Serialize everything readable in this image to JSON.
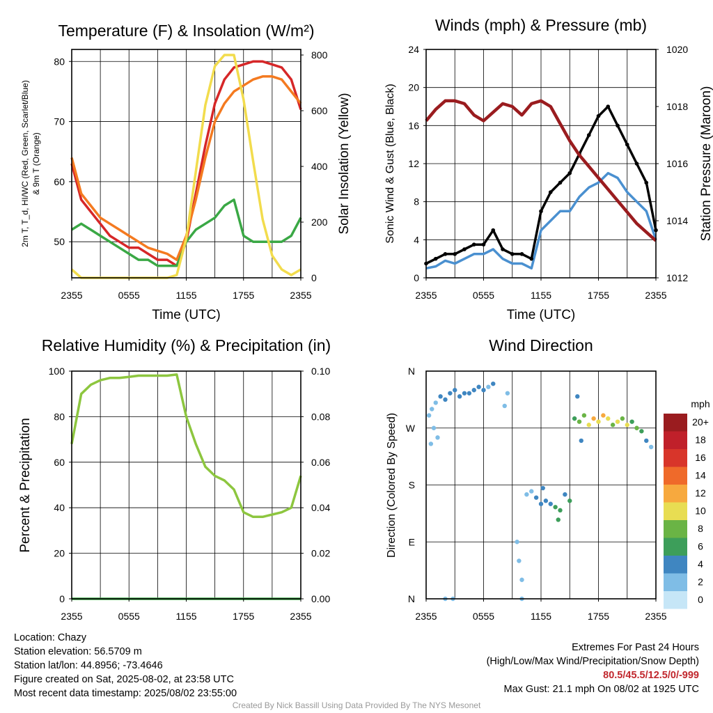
{
  "chart_data": [
    {
      "type": "line",
      "title": "Temperature (F) & Insolation (W/m²)",
      "xlabel": "Time (UTC)",
      "ylabel": "2m T, T_d, HI/WC (Red, Green, Scarlet/Blue) & 9m T (Orange)",
      "ylabel_right": "Solar Insolation (Yellow)",
      "x_ticks": [
        "2355",
        "0555",
        "1155",
        "1755",
        "2355"
      ],
      "ylim": [
        44,
        82
      ],
      "y_ticks": [
        50,
        60,
        70,
        80
      ],
      "ylim_right": [
        0,
        820
      ],
      "y_ticks_right": [
        0,
        200,
        400,
        600,
        800
      ],
      "x_hours": [
        0,
        1,
        2,
        3,
        4,
        5,
        6,
        7,
        8,
        9,
        10,
        11,
        12,
        13,
        14,
        15,
        16,
        17,
        18,
        19,
        20,
        21,
        22,
        23,
        24
      ],
      "series": [
        {
          "color": "#d62728",
          "axis": "left",
          "values": [
            63,
            57,
            55,
            53,
            51,
            50,
            49,
            49,
            48,
            47,
            47,
            46,
            50,
            58,
            66,
            73,
            77,
            79,
            79.5,
            80,
            80,
            79.5,
            79,
            77,
            72
          ]
        },
        {
          "color": "#3aa845",
          "axis": "left",
          "values": [
            52,
            53,
            52,
            51,
            50,
            49,
            48,
            47,
            47,
            46,
            46,
            46,
            50,
            52,
            53,
            54,
            56,
            57,
            51,
            50,
            50,
            50,
            50,
            51,
            54
          ]
        },
        {
          "color": "#f47a20",
          "axis": "left",
          "values": [
            64,
            58,
            56,
            54,
            53,
            52,
            51,
            50,
            49,
            48.5,
            48,
            47,
            51,
            57,
            64,
            70,
            73,
            75,
            76,
            77,
            77.5,
            77.5,
            77,
            75,
            73
          ]
        },
        {
          "color": "#f2dc4d",
          "axis": "right",
          "values": [
            30,
            0,
            0,
            0,
            0,
            0,
            0,
            0,
            0,
            0,
            0,
            10,
            140,
            380,
            620,
            760,
            800,
            800,
            640,
            420,
            210,
            80,
            30,
            10,
            30
          ]
        }
      ]
    },
    {
      "type": "line",
      "title": "Winds (mph) & Pressure (mb)",
      "xlabel": "Time (UTC)",
      "ylabel": "Sonic Wind & Gust (Blue, Black)",
      "ylabel_right": "Station Pressure (Maroon)",
      "x_ticks": [
        "2355",
        "0555",
        "1155",
        "1755",
        "2355"
      ],
      "ylim": [
        0,
        24
      ],
      "y_ticks": [
        0,
        4,
        8,
        12,
        16,
        20,
        24
      ],
      "ylim_right": [
        1012,
        1020
      ],
      "y_ticks_right": [
        1012,
        1014,
        1016,
        1018,
        1020
      ],
      "x_hours": [
        0,
        1,
        2,
        3,
        4,
        5,
        6,
        7,
        8,
        9,
        10,
        11,
        12,
        13,
        14,
        15,
        16,
        17,
        18,
        19,
        20,
        21,
        22,
        23,
        24
      ],
      "series": [
        {
          "color": "#4a90d0",
          "axis": "left",
          "values": [
            1,
            1.2,
            1.8,
            1.5,
            2,
            2.5,
            2.5,
            3,
            2,
            1.5,
            1.5,
            1,
            5,
            6,
            7,
            7,
            8.5,
            9.5,
            10,
            11,
            10.5,
            9,
            8,
            7,
            4
          ]
        },
        {
          "color": "#000000",
          "axis": "left",
          "values": [
            1.5,
            2,
            2.5,
            2.5,
            3,
            3.5,
            3.5,
            5,
            3,
            2.5,
            2.5,
            2,
            7,
            9,
            10,
            11,
            13,
            15,
            17,
            18,
            16,
            14,
            12,
            10,
            5
          ]
        },
        {
          "color": "#9a1c1f",
          "axis": "right",
          "values": [
            1017.5,
            1017.9,
            1018.2,
            1018.2,
            1018.1,
            1017.7,
            1017.5,
            1017.8,
            1018.1,
            1018.0,
            1017.7,
            1018.1,
            1018.2,
            1018.0,
            1017.4,
            1016.8,
            1016.3,
            1015.9,
            1015.5,
            1015.1,
            1014.7,
            1014.3,
            1013.9,
            1013.6,
            1013.3
          ]
        }
      ]
    },
    {
      "type": "line",
      "title": "Relative Humidity (%) & Precipitation (in)",
      "xlabel": "",
      "ylabel": "Percent & Precipitation",
      "x_ticks": [
        "2355",
        "0555",
        "1155",
        "1755",
        "2355"
      ],
      "ylim": [
        0,
        100
      ],
      "y_ticks": [
        0,
        20,
        40,
        60,
        80,
        100
      ],
      "ylim_right": [
        0,
        0.1
      ],
      "y_ticks_right": [
        "0.00",
        "0.02",
        "0.04",
        "0.06",
        "0.08",
        "0.10"
      ],
      "x_hours": [
        0,
        1,
        2,
        3,
        4,
        5,
        6,
        7,
        8,
        9,
        10,
        11,
        12,
        13,
        14,
        15,
        16,
        17,
        18,
        19,
        20,
        21,
        22,
        23,
        24
      ],
      "series": [
        {
          "color": "#8dc63f",
          "axis": "left",
          "values": [
            68,
            90,
            94,
            96,
            97,
            97,
            97.5,
            98,
            98,
            98,
            98,
            98.5,
            80,
            68,
            58,
            54,
            52,
            48,
            38,
            36,
            36,
            37,
            38,
            40,
            54
          ]
        },
        {
          "color": "#3aa845",
          "axis": "right",
          "values": [
            0,
            0,
            0,
            0,
            0,
            0,
            0,
            0,
            0,
            0,
            0,
            0,
            0,
            0,
            0,
            0,
            0,
            0,
            0,
            0,
            0,
            0,
            0,
            0,
            0
          ]
        }
      ]
    },
    {
      "type": "scatter",
      "title": "Wind Direction",
      "xlabel": "",
      "ylabel": "Direction (Colored By Speed)",
      "x_ticks": [
        "2355",
        "0555",
        "1155",
        "1755",
        "2355"
      ],
      "y_ticks": [
        "N",
        "E",
        "S",
        "W",
        "N"
      ],
      "ylim": [
        0,
        360
      ],
      "colorbar_title": "mph",
      "colorbar_labels": [
        "0",
        "2",
        "4",
        "6",
        "8",
        "10",
        "12",
        "14",
        "16",
        "18",
        "20+"
      ],
      "colorbar_colors": [
        "#c6e6f7",
        "#7fbde6",
        "#3f86c1",
        "#3d9e5a",
        "#6ab445",
        "#e8dd52",
        "#f7a93e",
        "#ef6a2a",
        "#d8352a",
        "#c0202a",
        "#9a1c1f"
      ],
      "points": [
        [
          0.3,
          290,
          1
        ],
        [
          0.6,
          300,
          2
        ],
        [
          1,
          310,
          2
        ],
        [
          1.5,
          320,
          3
        ],
        [
          2,
          315,
          3
        ],
        [
          2.5,
          325,
          3
        ],
        [
          3,
          330,
          4
        ],
        [
          3.5,
          320,
          3
        ],
        [
          4,
          325,
          3
        ],
        [
          4.5,
          325,
          3
        ],
        [
          5,
          330,
          4
        ],
        [
          5.5,
          335,
          3
        ],
        [
          6,
          330,
          3
        ],
        [
          6.5,
          335,
          2
        ],
        [
          7,
          340,
          3
        ],
        [
          0.5,
          245,
          1
        ],
        [
          0.8,
          270,
          1
        ],
        [
          1.2,
          255,
          2
        ],
        [
          8.2,
          305,
          1
        ],
        [
          8.5,
          325,
          2
        ],
        [
          9.5,
          90,
          1
        ],
        [
          9.7,
          60,
          1
        ],
        [
          10,
          30,
          1
        ],
        [
          10.5,
          165,
          1
        ],
        [
          11,
          170,
          2
        ],
        [
          11.5,
          160,
          3
        ],
        [
          12,
          150,
          4
        ],
        [
          12.5,
          155,
          3
        ],
        [
          13,
          150,
          4
        ],
        [
          13.5,
          145,
          5
        ],
        [
          14,
          140,
          6
        ],
        [
          14.5,
          165,
          4
        ],
        [
          15,
          155,
          5
        ],
        [
          12.2,
          175,
          3
        ],
        [
          13.8,
          125,
          6
        ],
        [
          15.5,
          285,
          5
        ],
        [
          16,
          280,
          7
        ],
        [
          16.5,
          290,
          8
        ],
        [
          17,
          275,
          9
        ],
        [
          17.5,
          285,
          11
        ],
        [
          18,
          280,
          10
        ],
        [
          18.5,
          290,
          12
        ],
        [
          19,
          285,
          10
        ],
        [
          19.5,
          275,
          8
        ],
        [
          20,
          280,
          9
        ],
        [
          20.5,
          285,
          7
        ],
        [
          21,
          275,
          9
        ],
        [
          21.5,
          280,
          6
        ],
        [
          22,
          270,
          7
        ],
        [
          22.5,
          265,
          5
        ],
        [
          23,
          250,
          3
        ],
        [
          23.5,
          240,
          2
        ],
        [
          16.2,
          250,
          4
        ],
        [
          15.8,
          320,
          4
        ],
        [
          2,
          0,
          1
        ],
        [
          2.8,
          0,
          1
        ],
        [
          10,
          0,
          1
        ]
      ]
    }
  ],
  "info": {
    "location": "Location: Chazy",
    "elevation": "Station elevation: 56.5709 m",
    "latlon": "Station lat/lon: 44.8956; -73.4646",
    "created": "Figure created on Sat, 2025-08-02, at 23:58 UTC",
    "recent": "Most recent data timestamp: 2025/08/02 23:55:00"
  },
  "extremes": {
    "title": "Extremes For Past 24 Hours",
    "subtitle": "(High/Low/Max Wind/Precipitation/Snow Depth)",
    "values": "80.5/45.5/12.5/0/-999",
    "gust": "Max Gust: 21.1 mph On 08/02 at 1925 UTC"
  },
  "credit": "Created By Nick Bassill Using Data Provided By The NYS Mesonet"
}
